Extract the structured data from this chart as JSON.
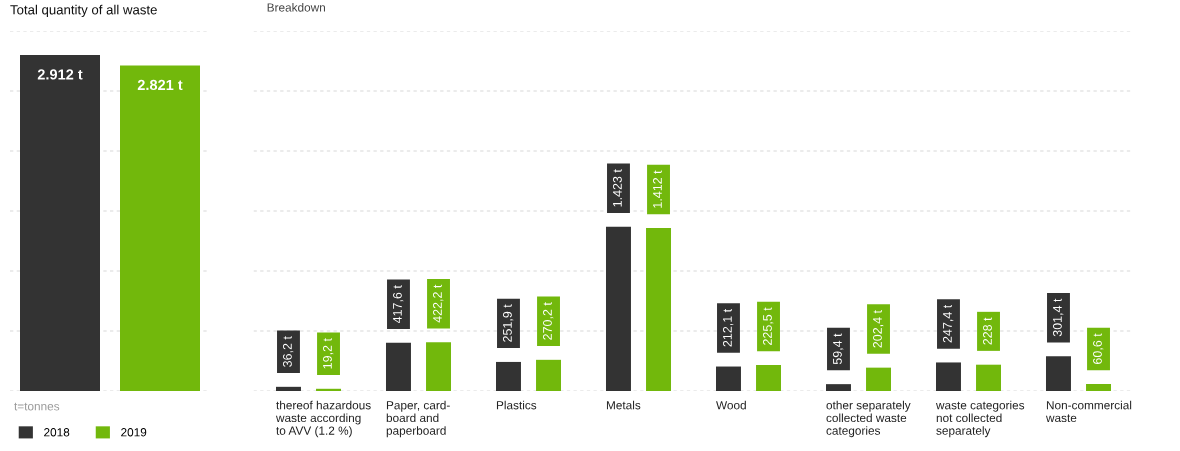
{
  "chart_data": [
    {
      "type": "bar",
      "title": "Total quantity of all waste",
      "categories": [
        null
      ],
      "series": [
        {
          "name": "2018",
          "color": "#333333",
          "values": [
            2912
          ],
          "value_labels": [
            "2.912 t"
          ]
        },
        {
          "name": "2019",
          "color": "#72b80c",
          "values": [
            2821
          ],
          "value_labels": [
            "2.821 t"
          ]
        }
      ],
      "ylim": [
        0,
        3120
      ],
      "yticks": [
        {
          "value": 0,
          "label": null
        },
        {
          "value": 520,
          "label": null
        },
        {
          "value": 1040,
          "label": null
        },
        {
          "value": 1560,
          "label": null
        },
        {
          "value": 2080,
          "label": null
        },
        {
          "value": 2600,
          "label": null
        },
        {
          "value": 3120,
          "label": null
        }
      ],
      "grid": "y",
      "tick_labels": false,
      "legend": "bottom left",
      "annotations": [
        "t=tonnes"
      ]
    },
    {
      "type": "bar",
      "title": "Breakdown",
      "categories": [
        "thereof hazardous\nwaste according\nto AVV (1.2 %)",
        "Paper, card-\nboard and\npaperboard",
        "Plastics",
        "Metals",
        "Wood",
        "other separately\ncollected waste\ncategories",
        "waste categories\nnot collected\nseparately",
        "Non-commercial\nwaste"
      ],
      "series": [
        {
          "color": "#333333",
          "values": [
            36.2,
            417.6,
            251.9,
            1423,
            212.1,
            59.4,
            247.4,
            301.4
          ],
          "value_labels": [
            "36,2 t",
            "417,6 t",
            "251,9 t",
            "1.423 t",
            "212,1 t",
            "59,4 t",
            "247,4 t",
            "301,4 t"
          ]
        },
        {
          "color": "#72b80c",
          "values": [
            19.2,
            422.2,
            270.2,
            1412,
            225.5,
            202.4,
            228,
            60.6
          ],
          "value_labels": [
            "19,2 t",
            "422,2 t",
            "270,2 t",
            "1.412 t",
            "225,5 t",
            "202,4 t",
            "228 t",
            "60,6 t"
          ]
        }
      ],
      "ylim": [
        0,
        3120
      ],
      "yticks": [
        {
          "value": 0,
          "label": null
        },
        {
          "value": 520,
          "label": null
        },
        {
          "value": 1040,
          "label": null
        },
        {
          "value": 1560,
          "label": null
        },
        {
          "value": 2080,
          "label": null
        },
        {
          "value": 2600,
          "label": null
        },
        {
          "value": 3120,
          "label": null
        }
      ],
      "grid": "y",
      "tick_labels": "x"
    }
  ]
}
